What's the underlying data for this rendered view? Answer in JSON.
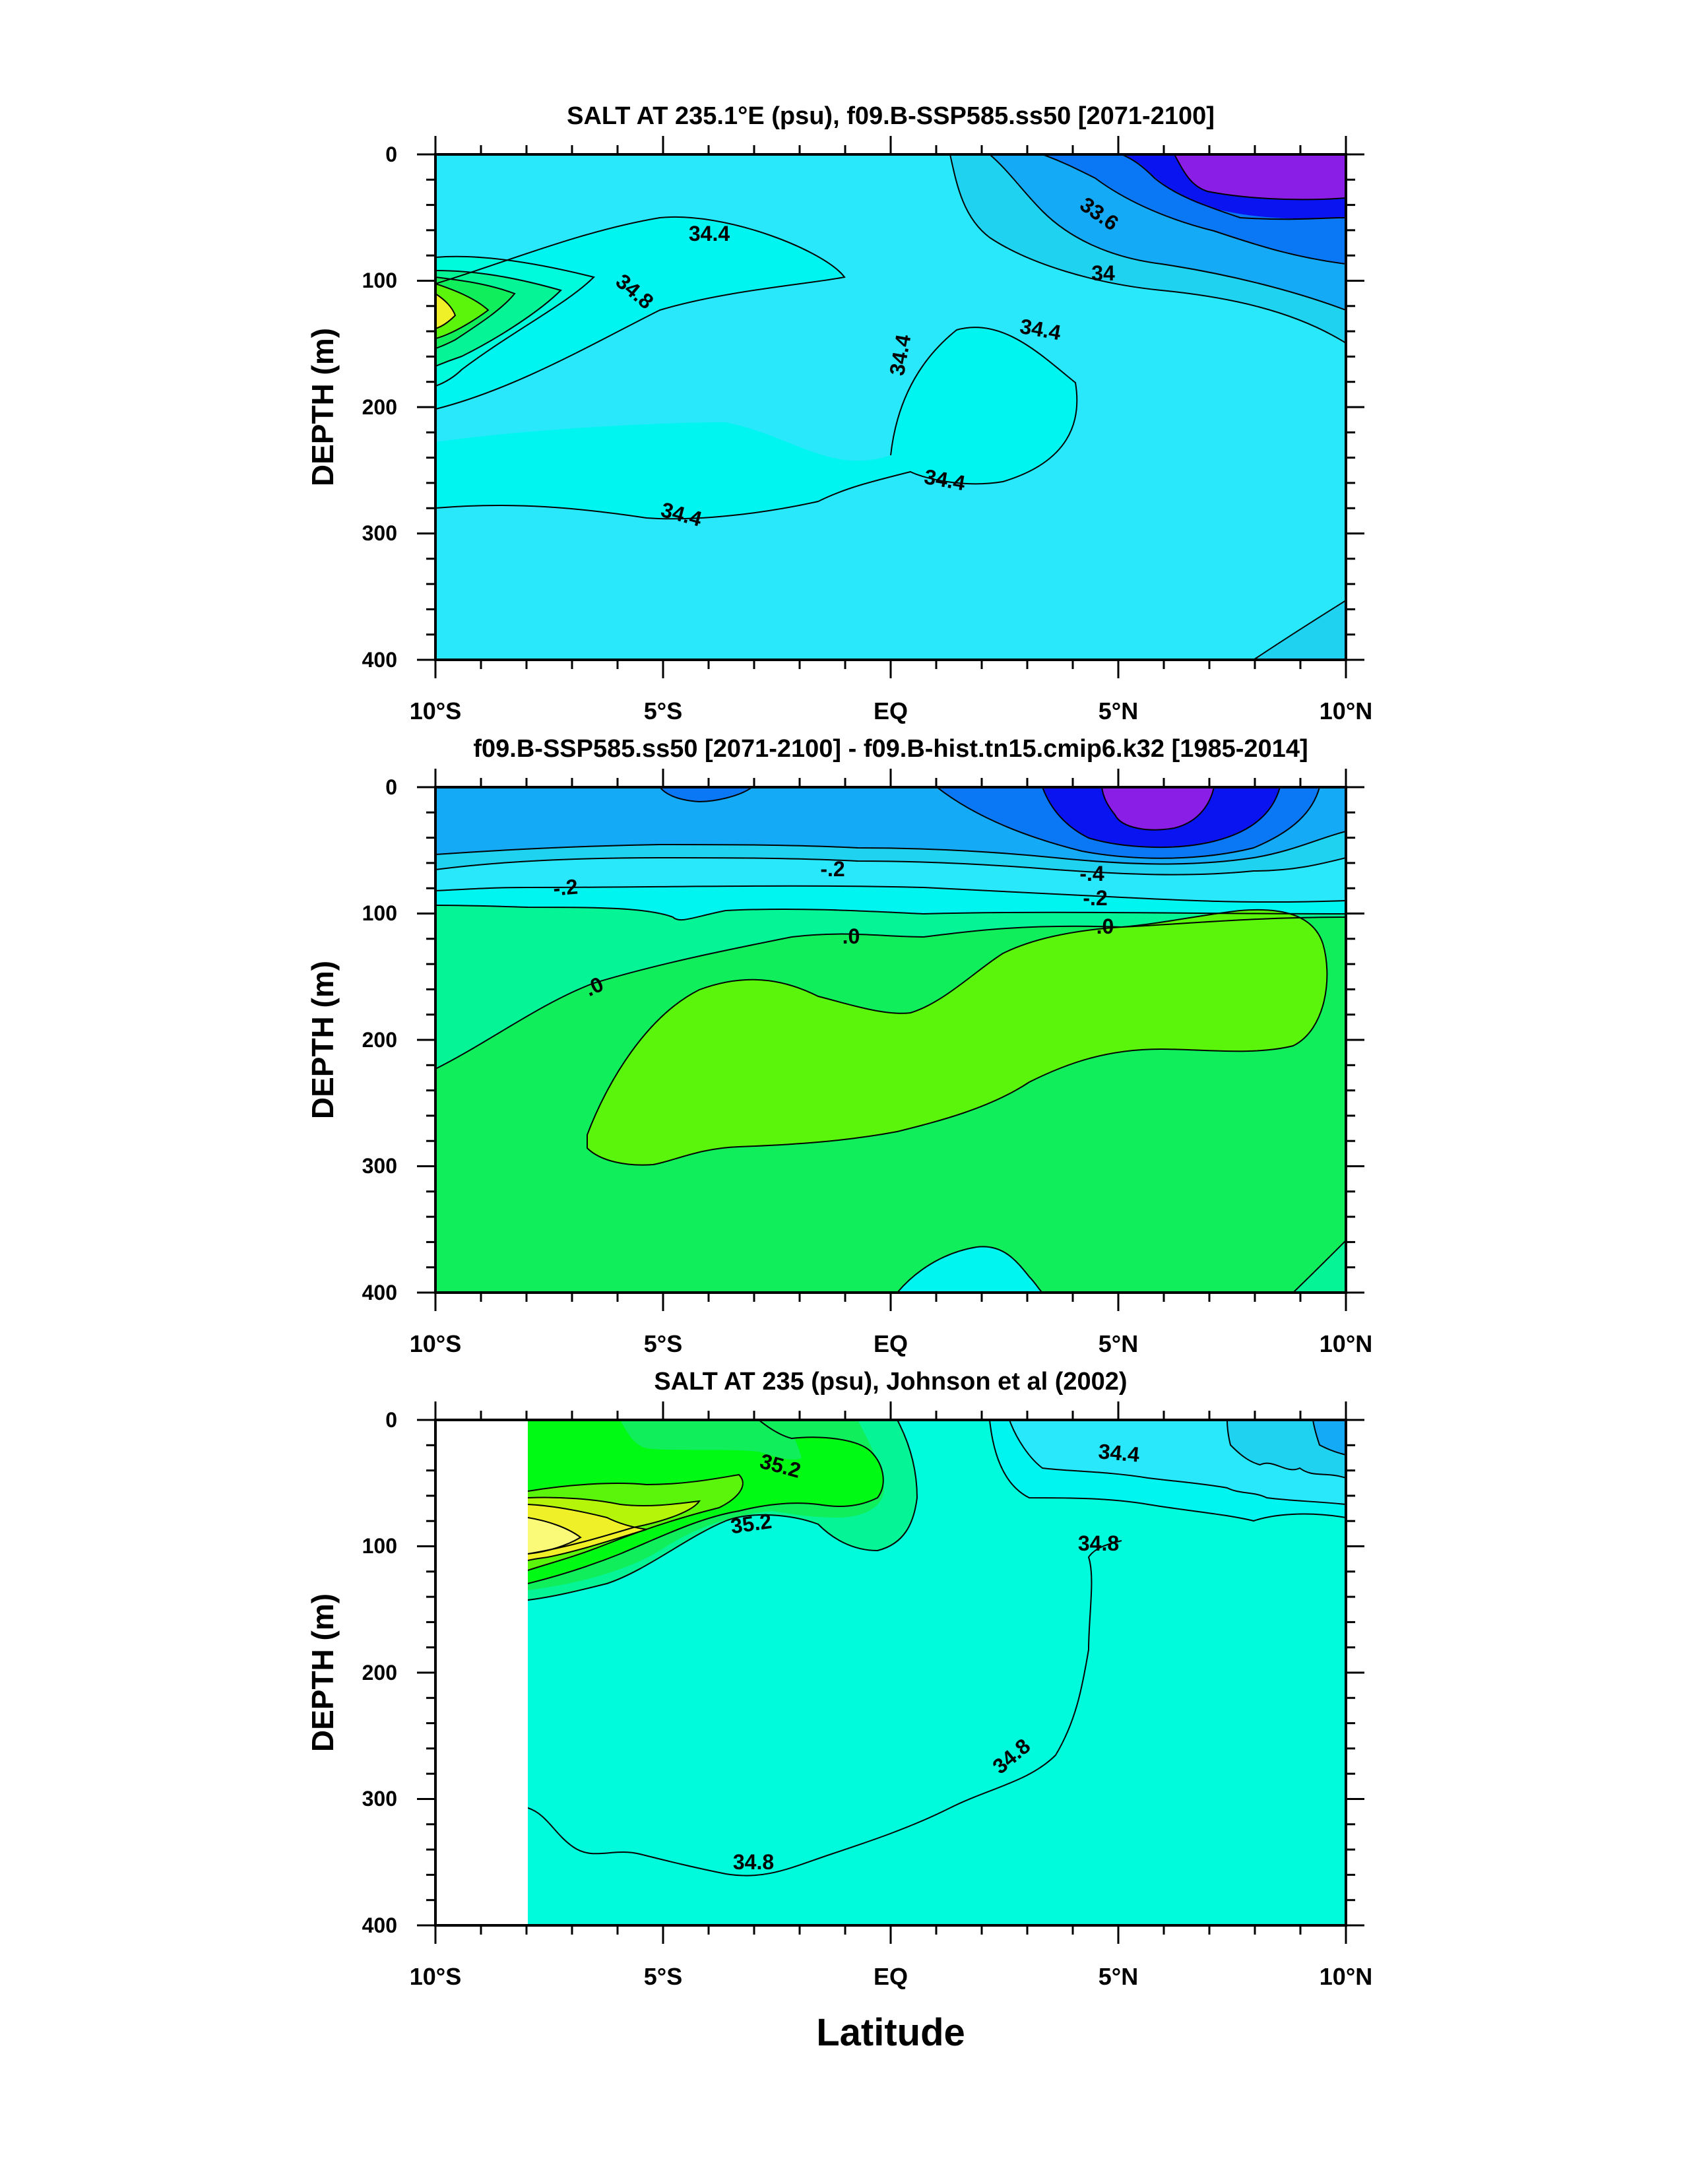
{
  "chart_data": [
    {
      "type": "contour",
      "title": "SALT AT 235.1°E (psu), f09.B-SSP585.ss50 [2071-2100]",
      "xlabel": "",
      "ylabel": "DEPTH (m)",
      "xticks": [
        "10°S",
        "5°S",
        "EQ",
        "5°N",
        "10°N"
      ],
      "yticks": [
        "0",
        "100",
        "200",
        "300",
        "400"
      ],
      "xlim": [
        -10,
        10
      ],
      "ylim": [
        400,
        0
      ],
      "contour_labels": [
        "34.4",
        "34.8",
        "34.4",
        "34.4",
        "34.4",
        "34.4",
        "33.6",
        "34"
      ],
      "range_psu": [
        33.4,
        35.0
      ]
    },
    {
      "type": "contour",
      "title": "f09.B-SSP585.ss50 [2071-2100] - f09.B-hist.tn15.cmip6.k32 [1985-2014]",
      "xlabel": "",
      "ylabel": "DEPTH (m)",
      "xticks": [
        "10°S",
        "5°S",
        "EQ",
        "5°N",
        "10°N"
      ],
      "yticks": [
        "0",
        "100",
        "200",
        "300",
        "400"
      ],
      "xlim": [
        -10,
        10
      ],
      "ylim": [
        400,
        0
      ],
      "contour_labels": [
        "-.2",
        "-.2",
        "-.4",
        "-.2",
        ".0",
        ".0",
        ".0"
      ],
      "range_psu": [
        -0.8,
        0.2
      ]
    },
    {
      "type": "contour",
      "title": "SALT AT 235 (psu), Johnson et al (2002)",
      "xlabel": "Latitude",
      "ylabel": "DEPTH (m)",
      "xticks": [
        "10°S",
        "5°S",
        "EQ",
        "5°N",
        "10°N"
      ],
      "yticks": [
        "0",
        "100",
        "200",
        "300",
        "400"
      ],
      "xlim": [
        -10,
        10
      ],
      "ylim": [
        400,
        0
      ],
      "contour_labels": [
        "35.2",
        "35.2",
        "34.4",
        "34.8",
        "34.8",
        "34.8"
      ],
      "range_psu": [
        34.2,
        35.6
      ]
    }
  ],
  "colors": {
    "purple": "#8a1ee6",
    "blue": "#0a14f0",
    "mid_blue": "#0a78f5",
    "sky": "#14aaf5",
    "light_sky": "#1ed2f0",
    "cyan": "#2ae8fb",
    "aqua": "#00f5f0",
    "teal": "#00fadc",
    "sea_green": "#05f596",
    "green": "#10ee5c",
    "bright_green": "#00fa14",
    "lime": "#5af50a",
    "yellow_green": "#b4f50a",
    "yellow": "#f0f028",
    "pale_yellow": "#fafa78"
  }
}
